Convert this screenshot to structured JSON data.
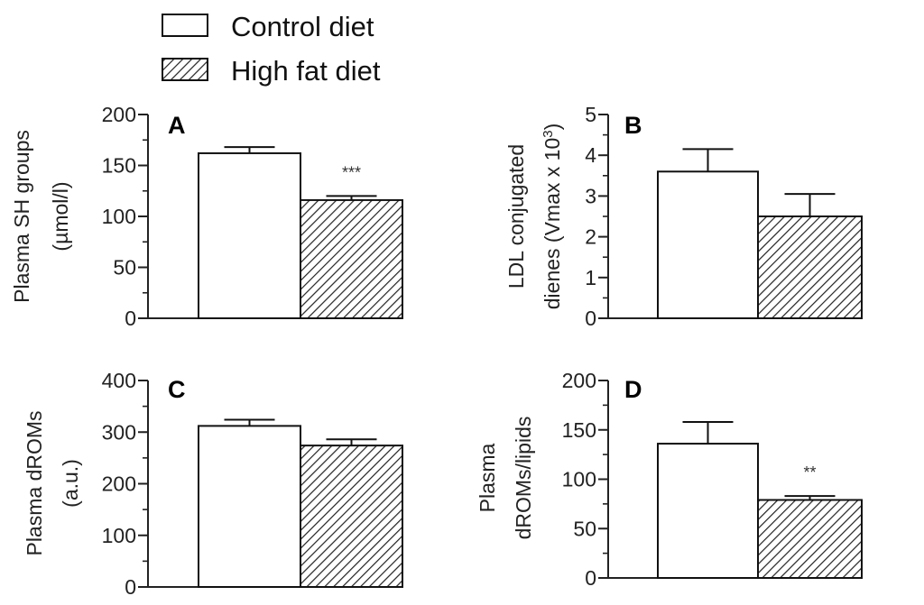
{
  "legend": {
    "placement": "top-left",
    "entries": [
      {
        "label": "Control diet",
        "pattern": "open"
      },
      {
        "label": "High fat diet",
        "pattern": "hatched"
      }
    ]
  },
  "colors": {
    "bar_fill_control": "#ffffff",
    "hatch": "#222222",
    "axis": "#222222"
  },
  "chart_data": [
    {
      "type": "bar",
      "panel": "A",
      "categories": [
        "Control diet",
        "High fat diet"
      ],
      "values": [
        162,
        116
      ],
      "errors": [
        6,
        4
      ],
      "ylabel": [
        "Plasma SH groups",
        "(µmol/l)"
      ],
      "ylim": [
        0,
        200
      ],
      "ticks": [
        0,
        50,
        100,
        150,
        200
      ],
      "minor_step": 25,
      "annotations": [
        {
          "bar": 1,
          "text": "***"
        }
      ]
    },
    {
      "type": "bar",
      "panel": "B",
      "categories": [
        "Control diet",
        "High fat diet"
      ],
      "values": [
        3.6,
        2.5
      ],
      "errors": [
        0.55,
        0.55
      ],
      "ylabel": [
        "LDL conjugated",
        "dienes (Vmax x 10",
        "3",
        ")"
      ],
      "ylim": [
        0,
        5
      ],
      "ticks": [
        0,
        1,
        2,
        3,
        4,
        5
      ],
      "minor_step": 0.5,
      "annotations": []
    },
    {
      "type": "bar",
      "panel": "C",
      "categories": [
        "Control diet",
        "High fat diet"
      ],
      "values": [
        312,
        274
      ],
      "errors": [
        12,
        12
      ],
      "ylabel": [
        "Plasma dROMs",
        "(a.u.)"
      ],
      "ylim": [
        0,
        400
      ],
      "ticks": [
        0,
        100,
        200,
        300,
        400
      ],
      "minor_step": 50,
      "annotations": []
    },
    {
      "type": "bar",
      "panel": "D",
      "categories": [
        "Control diet",
        "High fat diet"
      ],
      "values": [
        136,
        79
      ],
      "errors": [
        22,
        4
      ],
      "ylabel": [
        "Plasma",
        "dROMs/lipids"
      ],
      "ylim": [
        0,
        200
      ],
      "ticks": [
        0,
        50,
        100,
        150,
        200
      ],
      "minor_step": 25,
      "annotations": [
        {
          "bar": 1,
          "text": "**"
        }
      ]
    }
  ]
}
